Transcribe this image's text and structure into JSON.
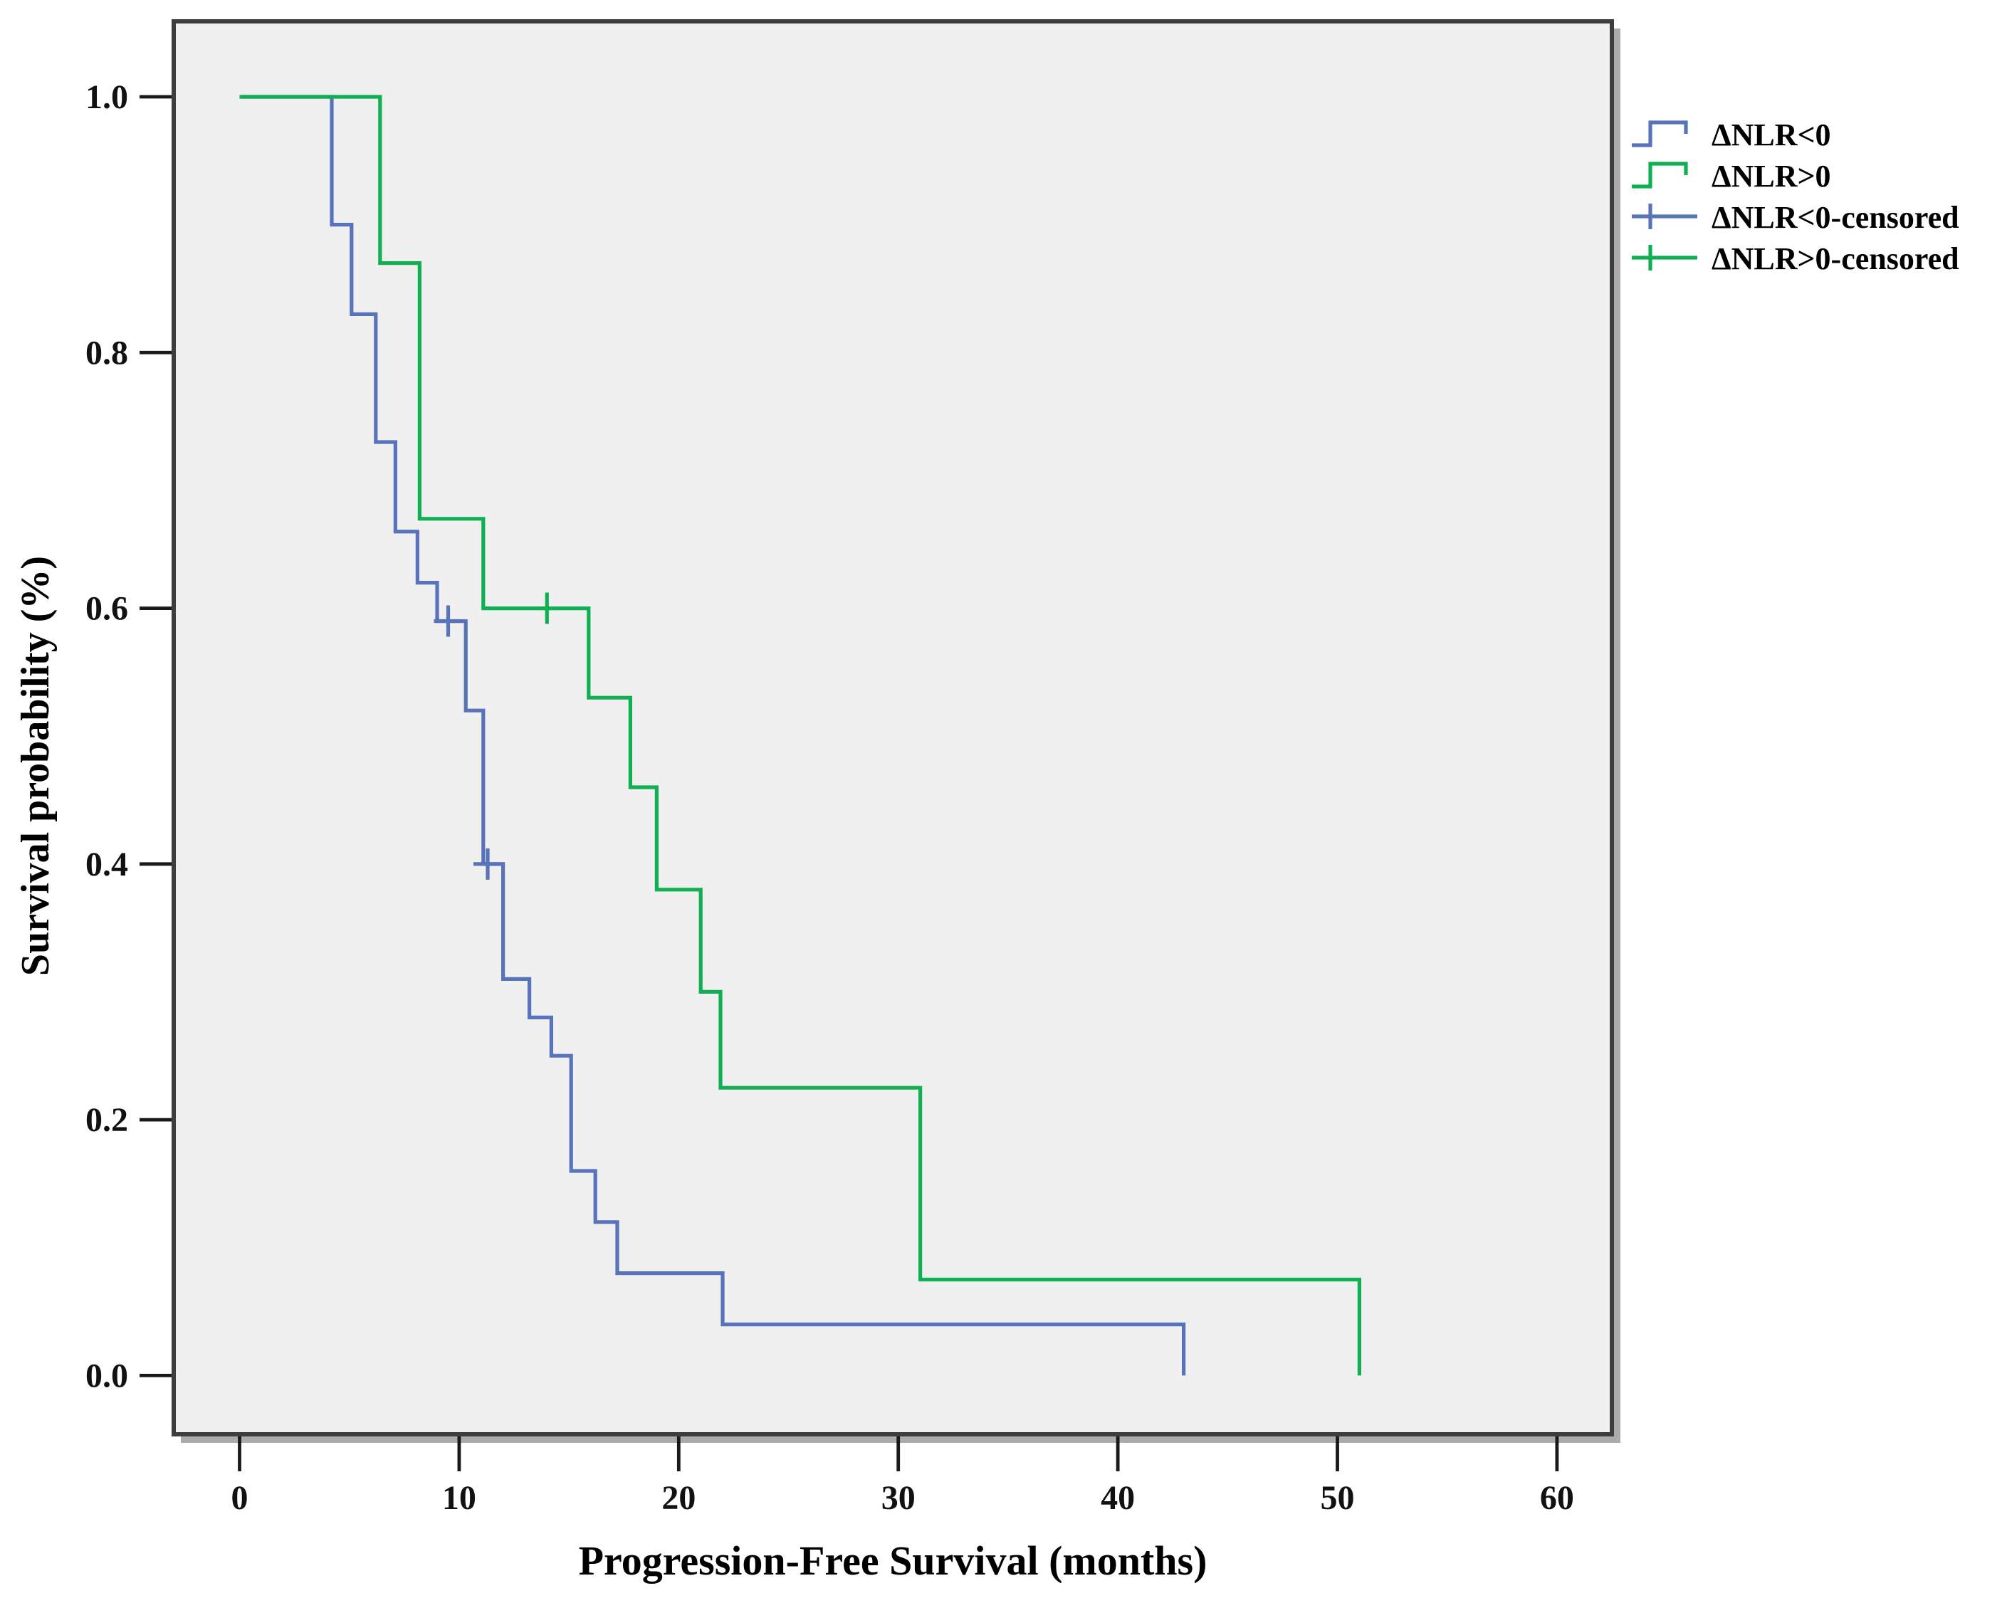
{
  "figure": {
    "background": "#ffffff",
    "plot_background": "#f0f0f0",
    "frame_color": "#3d3d3d",
    "shadow_color": "#ababab",
    "tick_color": "#1a1a1a"
  },
  "axes": {
    "x": {
      "label": "Progression-Free Survival (months)",
      "tick_values": [
        0,
        10,
        20,
        30,
        40,
        50,
        60
      ],
      "tick_labels": [
        "0",
        "10",
        "20",
        "30",
        "40",
        "50",
        "60"
      ],
      "range": [
        -3,
        62.5
      ]
    },
    "y": {
      "label": "Survival probability (%)",
      "tick_values": [
        1.0,
        0.8,
        0.6,
        0.4,
        0.2,
        0.0
      ],
      "tick_labels": [
        "1.0",
        "0.8",
        "0.6",
        "0.4",
        "0.2",
        "0.0"
      ],
      "range": [
        -0.046,
        1.059
      ]
    }
  },
  "chart_data": {
    "type": "line",
    "subtype": "kaplan-meier-step",
    "title": "",
    "xlabel": "Progression-Free Survival (months)",
    "ylabel": "Survival probability (%)",
    "x_unit": "months",
    "xlim": [
      0,
      60
    ],
    "ylim": [
      0.0,
      1.0
    ],
    "grid": false,
    "legend_position": "top-right-outside",
    "series": [
      {
        "name": "ΔNLR<0",
        "color": "#5873BA",
        "steps": [
          [
            0,
            1.0
          ],
          [
            4.2,
            0.9
          ],
          [
            5.1,
            0.83
          ],
          [
            6.2,
            0.73
          ],
          [
            7.1,
            0.66
          ],
          [
            8.1,
            0.62
          ],
          [
            9.0,
            0.59
          ],
          [
            10.3,
            0.52
          ],
          [
            11.1,
            0.4
          ],
          [
            12.0,
            0.31
          ],
          [
            13.2,
            0.28
          ],
          [
            14.2,
            0.25
          ],
          [
            15.1,
            0.16
          ],
          [
            16.2,
            0.12
          ],
          [
            17.2,
            0.08
          ],
          [
            22.0,
            0.04
          ],
          [
            43.0,
            0.0
          ]
        ],
        "censored": [
          [
            9.5,
            0.59
          ],
          [
            11.3,
            0.4
          ]
        ]
      },
      {
        "name": "ΔNLR>0",
        "color": "#10B052",
        "steps": [
          [
            0,
            1.0
          ],
          [
            6.4,
            0.87
          ],
          [
            8.2,
            0.67
          ],
          [
            11.1,
            0.6
          ],
          [
            15.9,
            0.53
          ],
          [
            17.8,
            0.46
          ],
          [
            19.0,
            0.38
          ],
          [
            21.0,
            0.3
          ],
          [
            21.9,
            0.225
          ],
          [
            31.0,
            0.075
          ],
          [
            51.0,
            0.0
          ]
        ],
        "censored": [
          [
            14.0,
            0.6
          ]
        ]
      }
    ]
  },
  "legend": {
    "items": [
      {
        "label": "ΔNLR<0",
        "color": "#5873BA",
        "symbol": "step"
      },
      {
        "label": "ΔNLR>0",
        "color": "#10B052",
        "symbol": "step"
      },
      {
        "label": "ΔNLR<0-censored",
        "color": "#5873BA",
        "symbol": "plus"
      },
      {
        "label": "ΔNLR>0-censored",
        "color": "#10B052",
        "symbol": "plus"
      }
    ]
  }
}
